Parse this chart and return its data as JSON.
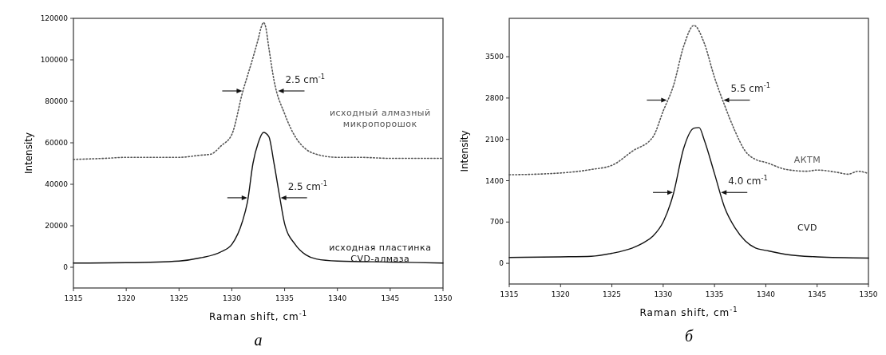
{
  "chart_data": [
    {
      "type": "line",
      "title": "а",
      "xlabel": "Raman shift, cm$^{-1}$",
      "ylabel": "Intensity",
      "xlim": [
        1315,
        1350
      ],
      "xticks": [
        1315,
        1320,
        1325,
        1330,
        1335,
        1340,
        1345,
        1350
      ],
      "ylim": [
        -10000,
        120000
      ],
      "yticks": [
        0,
        20000,
        40000,
        60000,
        80000,
        100000,
        120000
      ],
      "grid": false,
      "marker": "none",
      "annotations": [
        "2.5 cm$^{-1}$",
        "2.5 cm$^{-1}$"
      ],
      "series": [
        {
          "name": "исходный алмазный\nмикропорошок",
          "color": "#555555",
          "line_style": "dotted",
          "x": [
            1315,
            1318,
            1320,
            1323,
            1325,
            1327,
            1328,
            1329,
            1330,
            1331,
            1332,
            1332.5,
            1332.8,
            1333,
            1333.2,
            1333.5,
            1334,
            1335,
            1336,
            1337,
            1338,
            1340,
            1342,
            1345,
            1347,
            1350
          ],
          "values": [
            52000,
            52500,
            53000,
            53000,
            53000,
            54000,
            54500,
            58600,
            64000,
            84000,
            101000,
            110000,
            116000,
            118000,
            116000,
            106000,
            90000,
            74000,
            63000,
            57000,
            54500,
            53000,
            53000,
            52500,
            52500,
            52500
          ]
        },
        {
          "name": "исходная пластинка\nCVD-алмаза",
          "color": "#111111",
          "line_style": "solid",
          "x": [
            1315,
            1320,
            1325,
            1327,
            1329,
            1330,
            1331,
            1331.5,
            1332,
            1332.5,
            1333,
            1333.5,
            1334,
            1334.5,
            1335,
            1336,
            1337,
            1338,
            1340,
            1345,
            1350
          ],
          "values": [
            2000,
            2200,
            3000,
            4500,
            7500,
            11000,
            22000,
            32000,
            50000,
            60000,
            65000,
            63000,
            50000,
            35000,
            21000,
            11000,
            6000,
            4000,
            3000,
            2500,
            2000
          ]
        }
      ]
    },
    {
      "type": "line",
      "title": "б",
      "xlabel": "Raman shift, cm$^{-1}$",
      "ylabel": "Intensity",
      "xlim": [
        1315,
        1350
      ],
      "xticks": [
        1315,
        1320,
        1325,
        1330,
        1335,
        1340,
        1345,
        1350
      ],
      "ylim": [
        -350,
        4150
      ],
      "yticks": [
        0,
        700,
        1400,
        2100,
        2800,
        3500
      ],
      "grid": false,
      "marker": "none",
      "annotations": [
        "5.5 cm$^{-1}$",
        "4.0 cm$^{-1}$"
      ],
      "series": [
        {
          "name": "АКТМ",
          "color": "#555555",
          "line_style": "dotted",
          "x": [
            1315,
            1320,
            1323,
            1325,
            1327,
            1329,
            1330,
            1331,
            1332,
            1333,
            1334,
            1335,
            1336,
            1337,
            1338,
            1339,
            1340,
            1342,
            1344,
            1345,
            1347,
            1348,
            1349,
            1350
          ],
          "values": [
            1500,
            1530,
            1590,
            1660,
            1900,
            2140,
            2580,
            3010,
            3680,
            4030,
            3730,
            3150,
            2670,
            2240,
            1900,
            1760,
            1710,
            1590,
            1560,
            1580,
            1540,
            1510,
            1560,
            1520
          ]
        },
        {
          "name": "CVD",
          "color": "#111111",
          "line_style": "solid",
          "x": [
            1315,
            1320,
            1323,
            1325,
            1327,
            1328,
            1329,
            1330,
            1331,
            1332,
            1333,
            1333.5,
            1334,
            1335,
            1336,
            1337,
            1338,
            1339,
            1340,
            1342,
            1345,
            1350
          ],
          "values": [
            100,
            110,
            120,
            170,
            260,
            340,
            460,
            700,
            1180,
            1950,
            2290,
            2300,
            2090,
            1520,
            940,
            600,
            380,
            260,
            220,
            150,
            110,
            90
          ]
        }
      ]
    }
  ]
}
